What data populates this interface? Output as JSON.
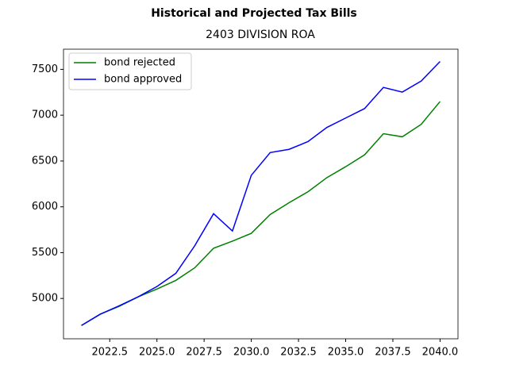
{
  "chart_data": {
    "type": "line",
    "title": "Historical and Projected Tax Bills",
    "subtitle": "2403 DIVISION ROA",
    "x": [
      2021,
      2022,
      2023,
      2024,
      2025,
      2026,
      2027,
      2028,
      2029,
      2030,
      2031,
      2032,
      2033,
      2034,
      2035,
      2036,
      2037,
      2038,
      2039,
      2040
    ],
    "series": [
      {
        "name": "bond rejected",
        "color": "#008000",
        "values": [
          4705,
          4829,
          4914,
          5017,
          5103,
          5197,
          5334,
          5548,
          5625,
          5711,
          5916,
          6045,
          6164,
          6318,
          6438,
          6567,
          6798,
          6764,
          6900,
          7149
        ]
      },
      {
        "name": "bond approved",
        "color": "#0000ff",
        "values": [
          4705,
          4829,
          4920,
          5017,
          5130,
          5274,
          5574,
          5925,
          5736,
          6344,
          6592,
          6627,
          6712,
          6866,
          6969,
          7072,
          7303,
          7252,
          7372,
          7586
        ]
      }
    ],
    "xlim": [
      2020.05,
      2040.95
    ],
    "ylim": [
      4560,
      7720
    ],
    "xticks": [
      2022.5,
      {
        "value": 2025,
        "label": "2025.0"
      },
      2027.5,
      {
        "value": 2030,
        "label": "2030.0"
      },
      2032.5,
      {
        "value": 2035,
        "label": "2035.0"
      },
      2037.5,
      {
        "value": 2040,
        "label": "2040.0"
      }
    ],
    "yticks": [
      5000,
      5500,
      6000,
      6500,
      7000,
      7500
    ],
    "legend": "upper left"
  }
}
